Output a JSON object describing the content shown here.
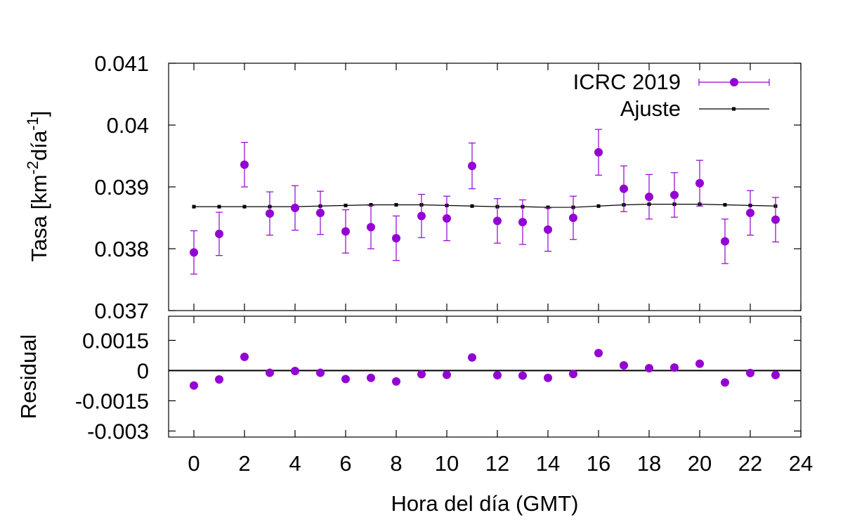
{
  "chart_data": {
    "type": "scatter",
    "colors": {
      "data": "#9400d3",
      "fit": "#000000",
      "frame": "#000000"
    },
    "x": [
      0,
      1,
      2,
      3,
      4,
      5,
      6,
      7,
      8,
      9,
      10,
      11,
      12,
      13,
      14,
      15,
      16,
      17,
      18,
      19,
      20,
      21,
      22,
      23
    ],
    "xlabel": "Hora del día (GMT)",
    "xlim": [
      -1,
      24
    ],
    "xticks": [
      0,
      2,
      4,
      6,
      8,
      10,
      12,
      14,
      16,
      18,
      20,
      22,
      24
    ],
    "xtick_labels": [
      "0",
      "2",
      "4",
      "6",
      "8",
      "10",
      "12",
      "14",
      "16",
      "18",
      "20",
      "22",
      "24"
    ],
    "top_panel": {
      "ylabel_main": "Tasa [km",
      "ylabel_sup1": "-2",
      "ylabel_mid": "día",
      "ylabel_sup2": "-1",
      "ylabel_end": "]",
      "ylim": [
        0.037,
        0.041
      ],
      "yticks": [
        0.037,
        0.038,
        0.039,
        0.04,
        0.041
      ],
      "ytick_labels": [
        "0.037",
        "0.038",
        "0.039",
        "0.04",
        "0.041"
      ],
      "legend_position": "top-right",
      "series": [
        {
          "name": "ICRC 2019",
          "kind": "points-with-errorbars",
          "values": [
            0.03794,
            0.03824,
            0.03936,
            0.03857,
            0.03866,
            0.03858,
            0.03828,
            0.03835,
            0.03817,
            0.03853,
            0.03849,
            0.03934,
            0.03845,
            0.03843,
            0.03831,
            0.0385,
            0.03956,
            0.03897,
            0.03884,
            0.03887,
            0.03906,
            0.03812,
            0.03858,
            0.03847
          ],
          "errors": [
            0.00035,
            0.00035,
            0.00036,
            0.00035,
            0.00036,
            0.00035,
            0.00035,
            0.00035,
            0.00036,
            0.00035,
            0.00036,
            0.00037,
            0.00036,
            0.00036,
            0.00035,
            0.00035,
            0.00037,
            0.00037,
            0.00036,
            0.00036,
            0.00037,
            0.00036,
            0.00036,
            0.00036
          ]
        },
        {
          "name": "Ajuste",
          "kind": "line-with-markers",
          "values": [
            0.03868,
            0.03868,
            0.03868,
            0.03868,
            0.03868,
            0.03869,
            0.0387,
            0.03871,
            0.03871,
            0.03871,
            0.0387,
            0.03869,
            0.03868,
            0.03868,
            0.03867,
            0.03867,
            0.03869,
            0.03871,
            0.03872,
            0.03872,
            0.03872,
            0.03871,
            0.0387,
            0.03869
          ]
        }
      ]
    },
    "bottom_panel": {
      "ylabel": "Residual",
      "ylim": [
        -0.0033,
        0.0027
      ],
      "yticks": [
        -0.003,
        -0.0015,
        0,
        0.0015
      ],
      "ytick_labels": [
        "-0.003",
        "-0.0015",
        "0",
        "0.0015"
      ],
      "zero_line": true,
      "values": [
        -0.00074,
        -0.00044,
        0.00068,
        -0.00011,
        -2e-05,
        -0.00011,
        -0.00042,
        -0.00036,
        -0.00054,
        -0.00018,
        -0.00021,
        0.00065,
        -0.00023,
        -0.00025,
        -0.00036,
        -0.00017,
        0.00087,
        0.00026,
        0.00012,
        0.00015,
        0.00034,
        -0.00059,
        -0.00012,
        -0.00022
      ]
    }
  }
}
